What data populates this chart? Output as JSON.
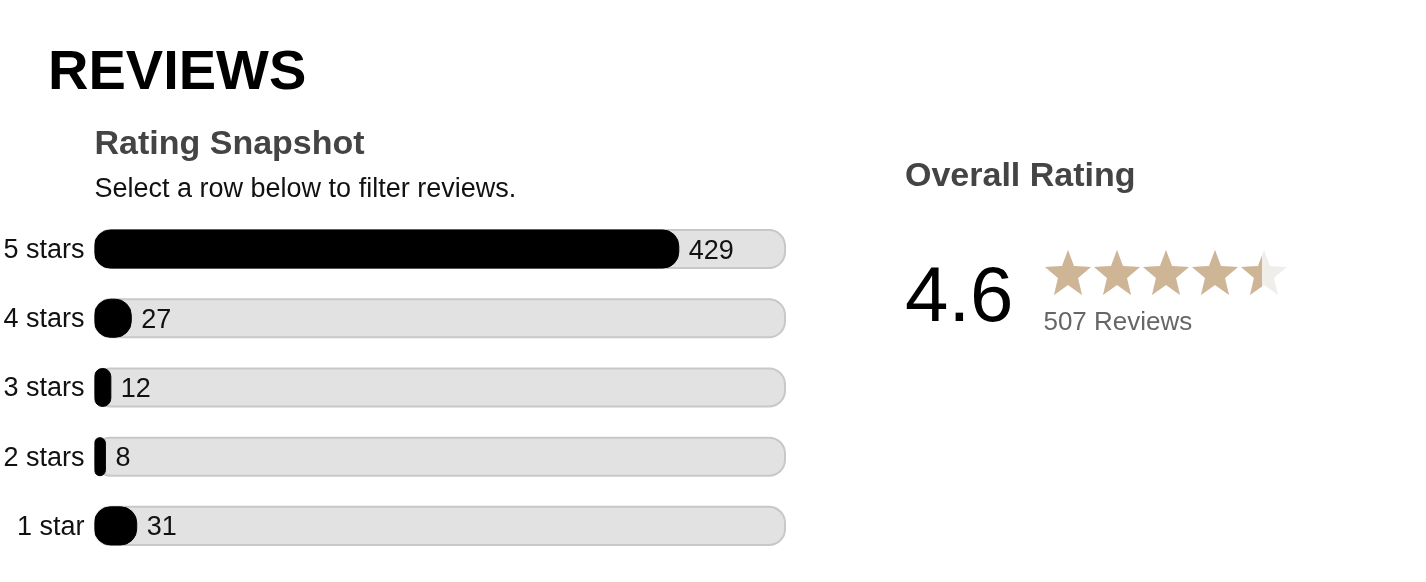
{
  "chart_data": {
    "type": "bar",
    "orientation": "horizontal",
    "title": "REVIEWS",
    "subtitle": "Rating Snapshot",
    "categories": [
      "5 stars",
      "4 stars",
      "3 stars",
      "2 stars",
      "1 star"
    ],
    "values": [
      429,
      27,
      12,
      8,
      31
    ],
    "color": "#000000",
    "data_labels": true,
    "tick_labels": "y",
    "grid": false,
    "annotations": [
      "Select a row below to filter reviews.",
      "Overall Rating",
      "4.6",
      "507 Reviews"
    ]
  }
}
